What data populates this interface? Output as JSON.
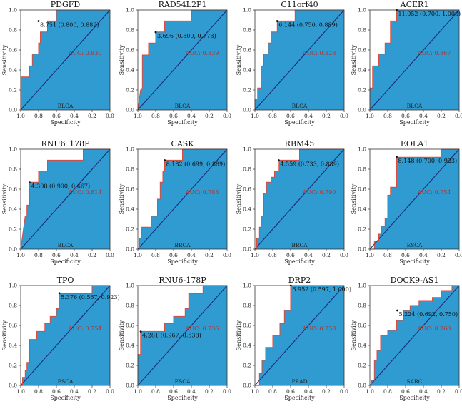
{
  "chart_data": [
    {
      "type": "roc",
      "title": "PDGFD",
      "cohort": "BLCA",
      "auc_label": "AUC: 0.830",
      "cutoff_label": "8.751 (0.800, 0.889)",
      "cutoff": [
        0.8,
        0.889
      ],
      "xlabel": "Specificity",
      "ylabel": "Sensitivity",
      "xlim": [
        1.0,
        0.0
      ],
      "ylim": [
        0.0,
        1.0
      ],
      "xticks": [
        "1.0",
        "0.8",
        "0.6",
        "0.4",
        "0.2",
        "0.0"
      ],
      "yticks": [
        "0.0",
        "0.2",
        "0.4",
        "0.6",
        "0.8",
        "1.0"
      ],
      "specificity": [
        1.0,
        1.0,
        0.9,
        0.9,
        0.87,
        0.87,
        0.8,
        0.8,
        0.78,
        0.78,
        0.7,
        0.7,
        0.6,
        0.6,
        0.4,
        0.4,
        0.0
      ],
      "sensitivity": [
        0.0,
        0.33,
        0.33,
        0.44,
        0.44,
        0.56,
        0.56,
        0.67,
        0.67,
        0.78,
        0.78,
        0.89,
        0.89,
        1.0,
        1.0,
        1.0,
        1.0
      ]
    },
    {
      "type": "roc",
      "title": "RAD54L2P1",
      "cohort": "BLCA",
      "auc_label": "AUC: 0.839",
      "cutoff_label": "3.696 (0.800, 0.778)",
      "cutoff": [
        0.8,
        0.778
      ],
      "xlabel": "Specificity",
      "ylabel": "Sensitivity",
      "xlim": [
        1.0,
        0.0
      ],
      "ylim": [
        0.0,
        1.0
      ],
      "xticks": [
        "1.0",
        "0.8",
        "0.6",
        "0.4",
        "0.2",
        "0.0"
      ],
      "yticks": [
        "0.0",
        "0.2",
        "0.4",
        "0.6",
        "0.8",
        "1.0"
      ],
      "specificity": [
        1.0,
        0.97,
        0.95,
        0.95,
        0.88,
        0.88,
        0.8,
        0.8,
        0.7,
        0.7,
        0.4,
        0.4,
        0.2,
        0.2,
        0.0
      ],
      "sensitivity": [
        0.0,
        0.2,
        0.22,
        0.55,
        0.55,
        0.67,
        0.67,
        0.78,
        0.78,
        0.89,
        0.89,
        1.0,
        1.0,
        1.0,
        1.0
      ]
    },
    {
      "type": "roc",
      "title": "C11orf40",
      "cohort": "BLCA",
      "auc_label": "AUC: 0.828",
      "cutoff_label": "6.144 (0.750, 0.889)",
      "cutoff": [
        0.75,
        0.889
      ],
      "xlabel": "Specificity",
      "ylabel": "Sensitivity",
      "xlim": [
        1.0,
        0.0
      ],
      "ylim": [
        0.0,
        1.0
      ],
      "xticks": [
        "1.0",
        "0.8",
        "0.6",
        "0.4",
        "0.2",
        "0.0"
      ],
      "yticks": [
        "0.0",
        "0.2",
        "0.4",
        "0.6",
        "0.8",
        "1.0"
      ],
      "specificity": [
        1.0,
        1.0,
        0.97,
        0.97,
        0.93,
        0.93,
        0.9,
        0.9,
        0.85,
        0.85,
        0.82,
        0.82,
        0.75,
        0.75,
        0.55,
        0.55,
        0.4,
        0.4,
        0.0
      ],
      "sensitivity": [
        0.0,
        0.11,
        0.11,
        0.22,
        0.22,
        0.44,
        0.44,
        0.56,
        0.56,
        0.67,
        0.67,
        0.78,
        0.78,
        0.89,
        0.89,
        1.0,
        1.0,
        1.0,
        1.0
      ]
    },
    {
      "type": "roc",
      "title": "ACER1",
      "cohort": "BLCA",
      "auc_label": "AUC: 0.867",
      "cutoff_label": "11.052 (0.700, 1.000)",
      "cutoff": [
        0.7,
        1.0
      ],
      "xlabel": "Specificity",
      "ylabel": "Sensitivity",
      "xlim": [
        1.0,
        0.0
      ],
      "ylim": [
        0.0,
        1.0
      ],
      "xticks": [
        "1.0",
        "0.8",
        "0.6",
        "0.4",
        "0.2",
        "0.0"
      ],
      "yticks": [
        "0.0",
        "0.2",
        "0.4",
        "0.6",
        "0.8",
        "1.0"
      ],
      "specificity": [
        1.0,
        1.0,
        0.97,
        0.97,
        0.9,
        0.9,
        0.83,
        0.83,
        0.77,
        0.77,
        0.7,
        0.7,
        0.0
      ],
      "sensitivity": [
        0.0,
        0.22,
        0.22,
        0.44,
        0.44,
        0.56,
        0.56,
        0.67,
        0.67,
        0.89,
        0.89,
        1.0,
        1.0
      ]
    },
    {
      "type": "roc",
      "title": "RNU6_178P",
      "cohort": "BLCA",
      "auc_label": "AUC: 0.814",
      "cutoff_label": "4.308 (0.900, 0.667)",
      "cutoff": [
        0.9,
        0.667
      ],
      "xlabel": "Specificity",
      "ylabel": "Sensitivity",
      "xlim": [
        1.0,
        0.0
      ],
      "ylim": [
        0.0,
        1.0
      ],
      "xticks": [
        "1.0",
        "0.8",
        "0.6",
        "0.4",
        "0.2",
        "0.0"
      ],
      "yticks": [
        "0.0",
        "0.2",
        "0.4",
        "0.6",
        "0.8",
        "1.0"
      ],
      "specificity": [
        1.0,
        0.97,
        0.95,
        0.93,
        0.93,
        0.9,
        0.9,
        0.8,
        0.8,
        0.7,
        0.7,
        0.3,
        0.3,
        0.0
      ],
      "sensitivity": [
        0.0,
        0.2,
        0.33,
        0.33,
        0.44,
        0.44,
        0.67,
        0.67,
        0.78,
        0.78,
        0.89,
        0.89,
        1.0,
        1.0
      ]
    },
    {
      "type": "roc",
      "title": "CASK",
      "cohort": "BRCA",
      "auc_label": "AUC: 0.783",
      "cutoff_label": "8.182 (0.699, 0.889)",
      "cutoff": [
        0.699,
        0.889
      ],
      "xlabel": "Specificity",
      "ylabel": "Sensitivity",
      "xlim": [
        1.0,
        0.0
      ],
      "ylim": [
        0.0,
        1.0
      ],
      "xticks": [
        "1.0",
        "0.8",
        "0.6",
        "0.4",
        "0.2",
        "0.0"
      ],
      "yticks": [
        "0.0",
        "0.2",
        "0.4",
        "0.6",
        "0.8",
        "1.0"
      ],
      "specificity": [
        1.0,
        0.98,
        0.98,
        0.96,
        0.96,
        0.85,
        0.85,
        0.78,
        0.78,
        0.75,
        0.75,
        0.72,
        0.72,
        0.7,
        0.7,
        0.5,
        0.5,
        0.0
      ],
      "sensitivity": [
        0.0,
        0.0,
        0.11,
        0.11,
        0.22,
        0.22,
        0.33,
        0.33,
        0.5,
        0.5,
        0.67,
        0.67,
        0.78,
        0.78,
        0.89,
        0.89,
        1.0,
        1.0
      ]
    },
    {
      "type": "roc",
      "title": "RBM45",
      "cohort": "BRCA",
      "auc_label": "AUC: 0.790",
      "cutoff_label": "4.559 (0.733, 0.889)",
      "cutoff": [
        0.733,
        0.889
      ],
      "xlabel": "Specificity",
      "ylabel": "Sensitivity",
      "xlim": [
        1.0,
        0.0
      ],
      "ylim": [
        0.0,
        1.0
      ],
      "xticks": [
        "1.0",
        "0.8",
        "0.6",
        "0.4",
        "0.2",
        "0.0"
      ],
      "yticks": [
        "0.0",
        "0.2",
        "0.4",
        "0.6",
        "0.8",
        "1.0"
      ],
      "specificity": [
        1.0,
        0.98,
        0.98,
        0.95,
        0.95,
        0.93,
        0.93,
        0.9,
        0.9,
        0.87,
        0.87,
        0.82,
        0.82,
        0.78,
        0.78,
        0.73,
        0.73,
        0.5,
        0.5,
        0.0
      ],
      "sensitivity": [
        0.0,
        0.0,
        0.11,
        0.11,
        0.22,
        0.22,
        0.33,
        0.33,
        0.56,
        0.56,
        0.67,
        0.67,
        0.72,
        0.72,
        0.78,
        0.78,
        0.89,
        0.89,
        1.0,
        1.0
      ]
    },
    {
      "type": "roc",
      "title": "EOLA1",
      "cohort": "ESCA",
      "auc_label": "AUC: 0.754",
      "cutoff_label": "8.148 (0.700, 0.923)",
      "cutoff": [
        0.7,
        0.923
      ],
      "xlabel": "Specificity",
      "ylabel": "Sensitivity",
      "xlim": [
        1.0,
        0.0
      ],
      "ylim": [
        0.0,
        1.0
      ],
      "xticks": [
        "1.0",
        "0.8",
        "0.6",
        "0.4",
        "0.2",
        "0.0"
      ],
      "yticks": [
        "0.0",
        "0.2",
        "0.4",
        "0.6",
        "0.8",
        "1.0"
      ],
      "specificity": [
        1.0,
        0.95,
        0.95,
        0.9,
        0.9,
        0.87,
        0.87,
        0.83,
        0.83,
        0.8,
        0.8,
        0.77,
        0.77,
        0.7,
        0.7,
        0.3,
        0.3,
        0.2,
        0.2,
        0.0
      ],
      "sensitivity": [
        0.0,
        0.0,
        0.08,
        0.08,
        0.15,
        0.15,
        0.23,
        0.23,
        0.31,
        0.31,
        0.54,
        0.54,
        0.62,
        0.62,
        0.92,
        0.92,
        0.92,
        0.92,
        1.0,
        1.0
      ]
    },
    {
      "type": "roc",
      "title": "TPO",
      "cohort": "ESCA",
      "auc_label": "AUC: 0.754",
      "cutoff_label": "5.376 (0.567, 0.923)",
      "cutoff": [
        0.567,
        0.923
      ],
      "xlabel": "Specificity",
      "ylabel": "Sensitivity",
      "xlim": [
        1.0,
        0.0
      ],
      "ylim": [
        0.0,
        1.0
      ],
      "xticks": [
        "1.0",
        "0.8",
        "0.6",
        "0.4",
        "0.2",
        "0.0"
      ],
      "yticks": [
        "0.0",
        "0.2",
        "0.4",
        "0.6",
        "0.8",
        "1.0"
      ],
      "specificity": [
        1.0,
        0.98,
        0.98,
        0.95,
        0.95,
        0.93,
        0.93,
        0.9,
        0.9,
        0.82,
        0.82,
        0.73,
        0.73,
        0.67,
        0.67,
        0.6,
        0.6,
        0.57,
        0.57,
        0.3,
        0.3,
        0.2,
        0.2,
        0.0
      ],
      "sensitivity": [
        0.0,
        0.0,
        0.08,
        0.08,
        0.15,
        0.15,
        0.23,
        0.23,
        0.46,
        0.46,
        0.54,
        0.54,
        0.62,
        0.62,
        0.69,
        0.69,
        0.77,
        0.77,
        0.92,
        0.92,
        0.92,
        0.92,
        1.0,
        1.0
      ]
    },
    {
      "type": "roc",
      "title": "RNU6-178P",
      "cohort": "ESCA",
      "auc_label": "AUC: 0.736",
      "cutoff_label": "4.281 (0.967, 0.538)",
      "cutoff": [
        0.967,
        0.538
      ],
      "xlabel": "Specificity",
      "ylabel": "Sensitivity",
      "xlim": [
        1.0,
        0.0
      ],
      "ylim": [
        0.0,
        1.0
      ],
      "xticks": [
        "1.0",
        "0.8",
        "0.6",
        "0.4",
        "0.2",
        "0.0"
      ],
      "yticks": [
        "0.0",
        "0.2",
        "0.4",
        "0.6",
        "0.8",
        "1.0"
      ],
      "specificity": [
        1.0,
        1.0,
        0.97,
        0.97,
        0.9,
        0.9,
        0.7,
        0.7,
        0.6,
        0.6,
        0.47,
        0.47,
        0.43,
        0.43,
        0.27,
        0.27,
        0.17,
        0.17,
        0.0
      ],
      "sensitivity": [
        0.0,
        0.31,
        0.31,
        0.54,
        0.54,
        0.54,
        0.54,
        0.62,
        0.62,
        0.69,
        0.69,
        0.77,
        0.77,
        0.92,
        0.92,
        1.0,
        1.0,
        1.0,
        1.0
      ]
    },
    {
      "type": "roc",
      "title": "DRP2",
      "cohort": "PRAD",
      "auc_label": "AUC: 0.758",
      "cutoff_label": "6.952 (0.597, 1.000)",
      "cutoff": [
        0.597,
        1.0
      ],
      "xlabel": "Specificity",
      "ylabel": "Sensitivity",
      "xlim": [
        1.0,
        0.0
      ],
      "ylim": [
        0.0,
        1.0
      ],
      "xticks": [
        "1.0",
        "0.8",
        "0.6",
        "0.4",
        "0.2",
        "0.0"
      ],
      "yticks": [
        "0.0",
        "0.2",
        "0.4",
        "0.6",
        "0.8",
        "1.0"
      ],
      "specificity": [
        1.0,
        0.95,
        0.95,
        0.92,
        0.92,
        0.88,
        0.88,
        0.8,
        0.8,
        0.72,
        0.72,
        0.67,
        0.67,
        0.6,
        0.6,
        0.0
      ],
      "sensitivity": [
        0.0,
        0.0,
        0.12,
        0.12,
        0.25,
        0.25,
        0.38,
        0.38,
        0.5,
        0.5,
        0.62,
        0.62,
        0.75,
        0.75,
        1.0,
        1.0
      ]
    },
    {
      "type": "roc",
      "title": "DOCK9-AS1",
      "cohort": "SARC",
      "auc_label": "AUC: 0.760",
      "cutoff_label": "5.224 (0.692, 0.750)",
      "cutoff": [
        0.692,
        0.75
      ],
      "xlabel": "Specificity",
      "ylabel": "Sensitivity",
      "xlim": [
        1.0,
        0.0
      ],
      "ylim": [
        0.0,
        1.0
      ],
      "xticks": [
        "1.0",
        "0.8",
        "0.6",
        "0.4",
        "0.2",
        "0.0"
      ],
      "yticks": [
        "0.0",
        "0.2",
        "0.4",
        "0.6",
        "0.8",
        "1.0"
      ],
      "specificity": [
        1.0,
        0.98,
        0.98,
        0.95,
        0.95,
        0.92,
        0.92,
        0.88,
        0.88,
        0.8,
        0.8,
        0.7,
        0.7,
        0.62,
        0.62,
        0.55,
        0.55,
        0.45,
        0.45,
        0.3,
        0.3,
        0.2,
        0.2,
        0.08,
        0.08,
        0.0
      ],
      "sensitivity": [
        0.0,
        0.0,
        0.05,
        0.05,
        0.25,
        0.25,
        0.35,
        0.35,
        0.5,
        0.5,
        0.55,
        0.55,
        0.65,
        0.65,
        0.75,
        0.75,
        0.8,
        0.8,
        0.85,
        0.85,
        0.88,
        0.88,
        0.95,
        0.95,
        1.0,
        1.0
      ]
    }
  ],
  "colors": {
    "fill": "#2f9bd0",
    "roc_line": "#d94b3c",
    "diagonal": "#1b2a7a",
    "axis": "#333333",
    "auc_text": "#b5332b"
  }
}
